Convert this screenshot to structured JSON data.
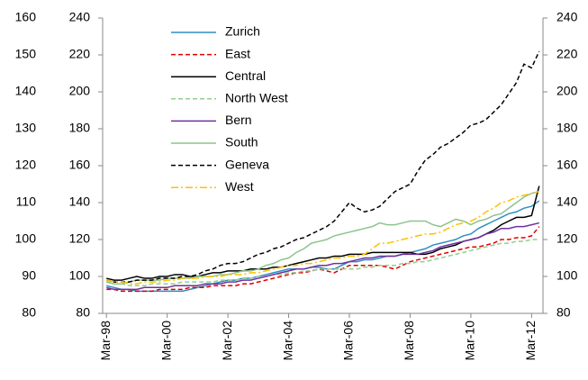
{
  "chart_data": {
    "type": "line",
    "categories": [
      "Mar-98",
      null,
      null,
      null,
      null,
      null,
      null,
      null,
      "Mar-00",
      null,
      null,
      null,
      null,
      null,
      null,
      null,
      "Mar-02",
      null,
      null,
      null,
      null,
      null,
      null,
      null,
      "Mar-04",
      null,
      null,
      null,
      null,
      null,
      null,
      null,
      "Mar-06",
      null,
      null,
      null,
      null,
      null,
      null,
      null,
      "Mar-08",
      null,
      null,
      null,
      null,
      null,
      null,
      null,
      "Mar-10",
      null,
      null,
      null,
      null,
      null,
      null,
      null,
      "Mar-12",
      null
    ],
    "ylim": [
      80,
      240
    ],
    "yticks": [
      80,
      100,
      120,
      140,
      160,
      180,
      200,
      220,
      240
    ],
    "y2lim": [
      80,
      240
    ],
    "y2ticks": [
      80,
      100,
      120,
      140,
      160,
      180,
      200,
      220,
      240
    ],
    "outer_ylim": [
      80,
      160
    ],
    "outer_yticks": [
      80,
      90,
      100,
      110,
      120,
      130,
      140,
      150,
      160
    ],
    "legend": "upper left",
    "series": [
      {
        "name": "Zurich",
        "color": "#2f8fc0",
        "style": "solid",
        "values": [
          95,
          94,
          93,
          93,
          92,
          92,
          92,
          92,
          92,
          92,
          92,
          93,
          94,
          95,
          96,
          97,
          98,
          98,
          99,
          99,
          100,
          101,
          102,
          103,
          104,
          104,
          104,
          105,
          105,
          104,
          104,
          106,
          108,
          108,
          109,
          109,
          110,
          111,
          111,
          112,
          113,
          114,
          115,
          117,
          118,
          119,
          120,
          122,
          123,
          126,
          128,
          130,
          132,
          134,
          135,
          137,
          138,
          141
        ]
      },
      {
        "name": "East",
        "color": "#e00000",
        "style": "dashed",
        "values": [
          93,
          93,
          92,
          92,
          92,
          92,
          92,
          93,
          93,
          93,
          93,
          94,
          94,
          94,
          95,
          95,
          95,
          95,
          96,
          96,
          97,
          98,
          99,
          100,
          101,
          102,
          102,
          103,
          104,
          103,
          102,
          104,
          106,
          106,
          106,
          106,
          106,
          105,
          104,
          106,
          108,
          109,
          110,
          111,
          112,
          113,
          114,
          115,
          116,
          116,
          117,
          118,
          120,
          120,
          121,
          121,
          122,
          127
        ]
      },
      {
        "name": "Central",
        "color": "#000000",
        "style": "solid",
        "values": [
          99,
          98,
          98,
          99,
          100,
          99,
          99,
          100,
          100,
          101,
          101,
          100,
          100,
          101,
          102,
          102,
          103,
          103,
          103,
          104,
          104,
          104,
          105,
          105,
          106,
          107,
          108,
          109,
          110,
          110,
          111,
          111,
          112,
          112,
          112,
          113,
          113,
          113,
          113,
          113,
          113,
          112,
          112,
          113,
          115,
          116,
          117,
          119,
          120,
          121,
          123,
          125,
          128,
          130,
          132,
          132,
          133,
          149
        ]
      },
      {
        "name": "North West",
        "color": "#8fd08f",
        "style": "dashed",
        "values": [
          97,
          96,
          96,
          95,
          95,
          95,
          96,
          96,
          96,
          96,
          97,
          97,
          97,
          97,
          97,
          98,
          98,
          98,
          99,
          99,
          100,
          100,
          101,
          101,
          102,
          102,
          103,
          103,
          104,
          104,
          104,
          104,
          104,
          104,
          105,
          105,
          106,
          106,
          106,
          107,
          107,
          108,
          108,
          109,
          110,
          111,
          112,
          113,
          114,
          115,
          116,
          117,
          118,
          118,
          119,
          119,
          120,
          120
        ]
      },
      {
        "name": "Bern",
        "color": "#7030a0",
        "style": "solid",
        "values": [
          94,
          93,
          93,
          93,
          93,
          94,
          94,
          94,
          94,
          95,
          95,
          95,
          95,
          96,
          96,
          96,
          97,
          97,
          98,
          98,
          99,
          100,
          101,
          102,
          103,
          104,
          104,
          105,
          106,
          106,
          107,
          107,
          108,
          109,
          110,
          110,
          111,
          111,
          111,
          112,
          112,
          112,
          113,
          114,
          116,
          117,
          118,
          119,
          120,
          121,
          123,
          124,
          126,
          126,
          127,
          127,
          128,
          129
        ]
      },
      {
        "name": "South",
        "color": "#8cc48c",
        "style": "solid",
        "values": [
          97,
          96,
          96,
          97,
          98,
          98,
          98,
          98,
          99,
          99,
          99,
          99,
          100,
          100,
          100,
          101,
          101,
          102,
          103,
          103,
          104,
          106,
          107,
          109,
          110,
          113,
          115,
          118,
          119,
          120,
          122,
          123,
          124,
          125,
          126,
          127,
          129,
          128,
          128,
          129,
          130,
          130,
          130,
          128,
          127,
          129,
          131,
          130,
          128,
          130,
          131,
          133,
          134,
          137,
          140,
          143,
          145,
          146
        ]
      },
      {
        "name": "Geneva",
        "color": "#000000",
        "style": "dashed",
        "values": [
          98,
          97,
          97,
          97,
          98,
          98,
          98,
          99,
          99,
          99,
          100,
          100,
          101,
          103,
          104,
          106,
          107,
          107,
          108,
          110,
          112,
          113,
          115,
          116,
          118,
          120,
          121,
          123,
          125,
          127,
          130,
          135,
          140,
          137,
          135,
          136,
          138,
          142,
          146,
          148,
          150,
          157,
          163,
          166,
          170,
          172,
          175,
          178,
          182,
          183,
          185,
          189,
          193,
          199,
          205,
          215,
          213,
          222
        ]
      },
      {
        "name": "West",
        "color": "#ffc000",
        "style": "dashdot",
        "values": [
          98,
          97,
          97,
          96,
          96,
          97,
          97,
          97,
          98,
          98,
          99,
          99,
          99,
          100,
          100,
          100,
          101,
          101,
          101,
          102,
          102,
          103,
          104,
          105,
          106,
          106,
          107,
          107,
          108,
          109,
          110,
          110,
          111,
          111,
          112,
          115,
          118,
          118,
          119,
          120,
          121,
          122,
          123,
          123,
          124,
          126,
          128,
          129,
          130,
          132,
          135,
          137,
          140,
          141,
          143,
          144,
          145,
          146
        ]
      }
    ]
  }
}
